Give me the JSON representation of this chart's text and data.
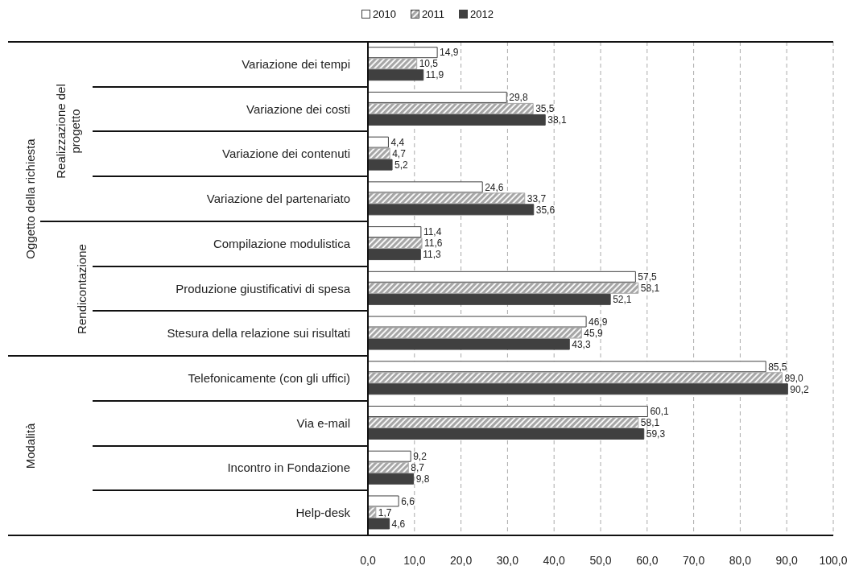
{
  "chart_data": {
    "type": "bar",
    "orientation": "horizontal",
    "categories": [
      "Variazione dei tempi",
      "Variazione dei costi",
      "Variazione dei contenuti",
      "Variazione del partenariato",
      "Compilazione modulistica",
      "Produzione giustificativi di spesa",
      "Stesura della relazione sui risultati",
      "Telefonicamente (con gli uffici)",
      "Via e-mail",
      "Incontro in Fondazione",
      "Help-desk"
    ],
    "series": [
      {
        "name": "2010",
        "color": "#ffffff",
        "values": [
          14.9,
          29.8,
          4.4,
          24.6,
          11.4,
          57.5,
          46.9,
          85.5,
          60.1,
          9.2,
          6.6
        ],
        "value_labels": [
          "14,9",
          "29,8",
          "4,4",
          "24,6",
          "11,4",
          "57,5",
          "46,9",
          "85,5",
          "60,1",
          "9,2",
          "6,6"
        ]
      },
      {
        "name": "2011",
        "color": "#a6a6a6",
        "values": [
          10.5,
          35.5,
          4.7,
          33.7,
          11.6,
          58.1,
          45.9,
          89.0,
          58.1,
          8.7,
          1.7
        ],
        "value_labels": [
          "10,5",
          "35,5",
          "4,7",
          "33,7",
          "11,6",
          "58,1",
          "45,9",
          "89,0",
          "58,1",
          "8,7",
          "1,7"
        ]
      },
      {
        "name": "2012",
        "color": "#404040",
        "values": [
          11.9,
          38.1,
          5.2,
          35.6,
          11.3,
          52.1,
          43.3,
          90.2,
          59.3,
          9.8,
          4.6
        ],
        "value_labels": [
          "11,9",
          "38,1",
          "5,2",
          "35,6",
          "11,3",
          "52,1",
          "43,3",
          "90,2",
          "59,3",
          "9,8",
          "4,6"
        ]
      }
    ],
    "xlim": [
      0,
      100
    ],
    "xticks": [
      {
        "value": 0,
        "label": "0,0"
      },
      {
        "value": 10,
        "label": "10,0"
      },
      {
        "value": 20,
        "label": "20,0"
      },
      {
        "value": 30,
        "label": "30,0"
      },
      {
        "value": 40,
        "label": "40,0"
      },
      {
        "value": 50,
        "label": "50,0"
      },
      {
        "value": 60,
        "label": "60,0"
      },
      {
        "value": 70,
        "label": "70,0"
      },
      {
        "value": 80,
        "label": "80,0"
      },
      {
        "value": 90,
        "label": "90,0"
      },
      {
        "value": 100,
        "label": "100,0"
      }
    ],
    "grid": "x",
    "legend": "top",
    "annotations": [
      "Oggetto della richiesta",
      "Realizzazione del progetto",
      "Rendicontazione",
      "Modalità"
    ]
  }
}
